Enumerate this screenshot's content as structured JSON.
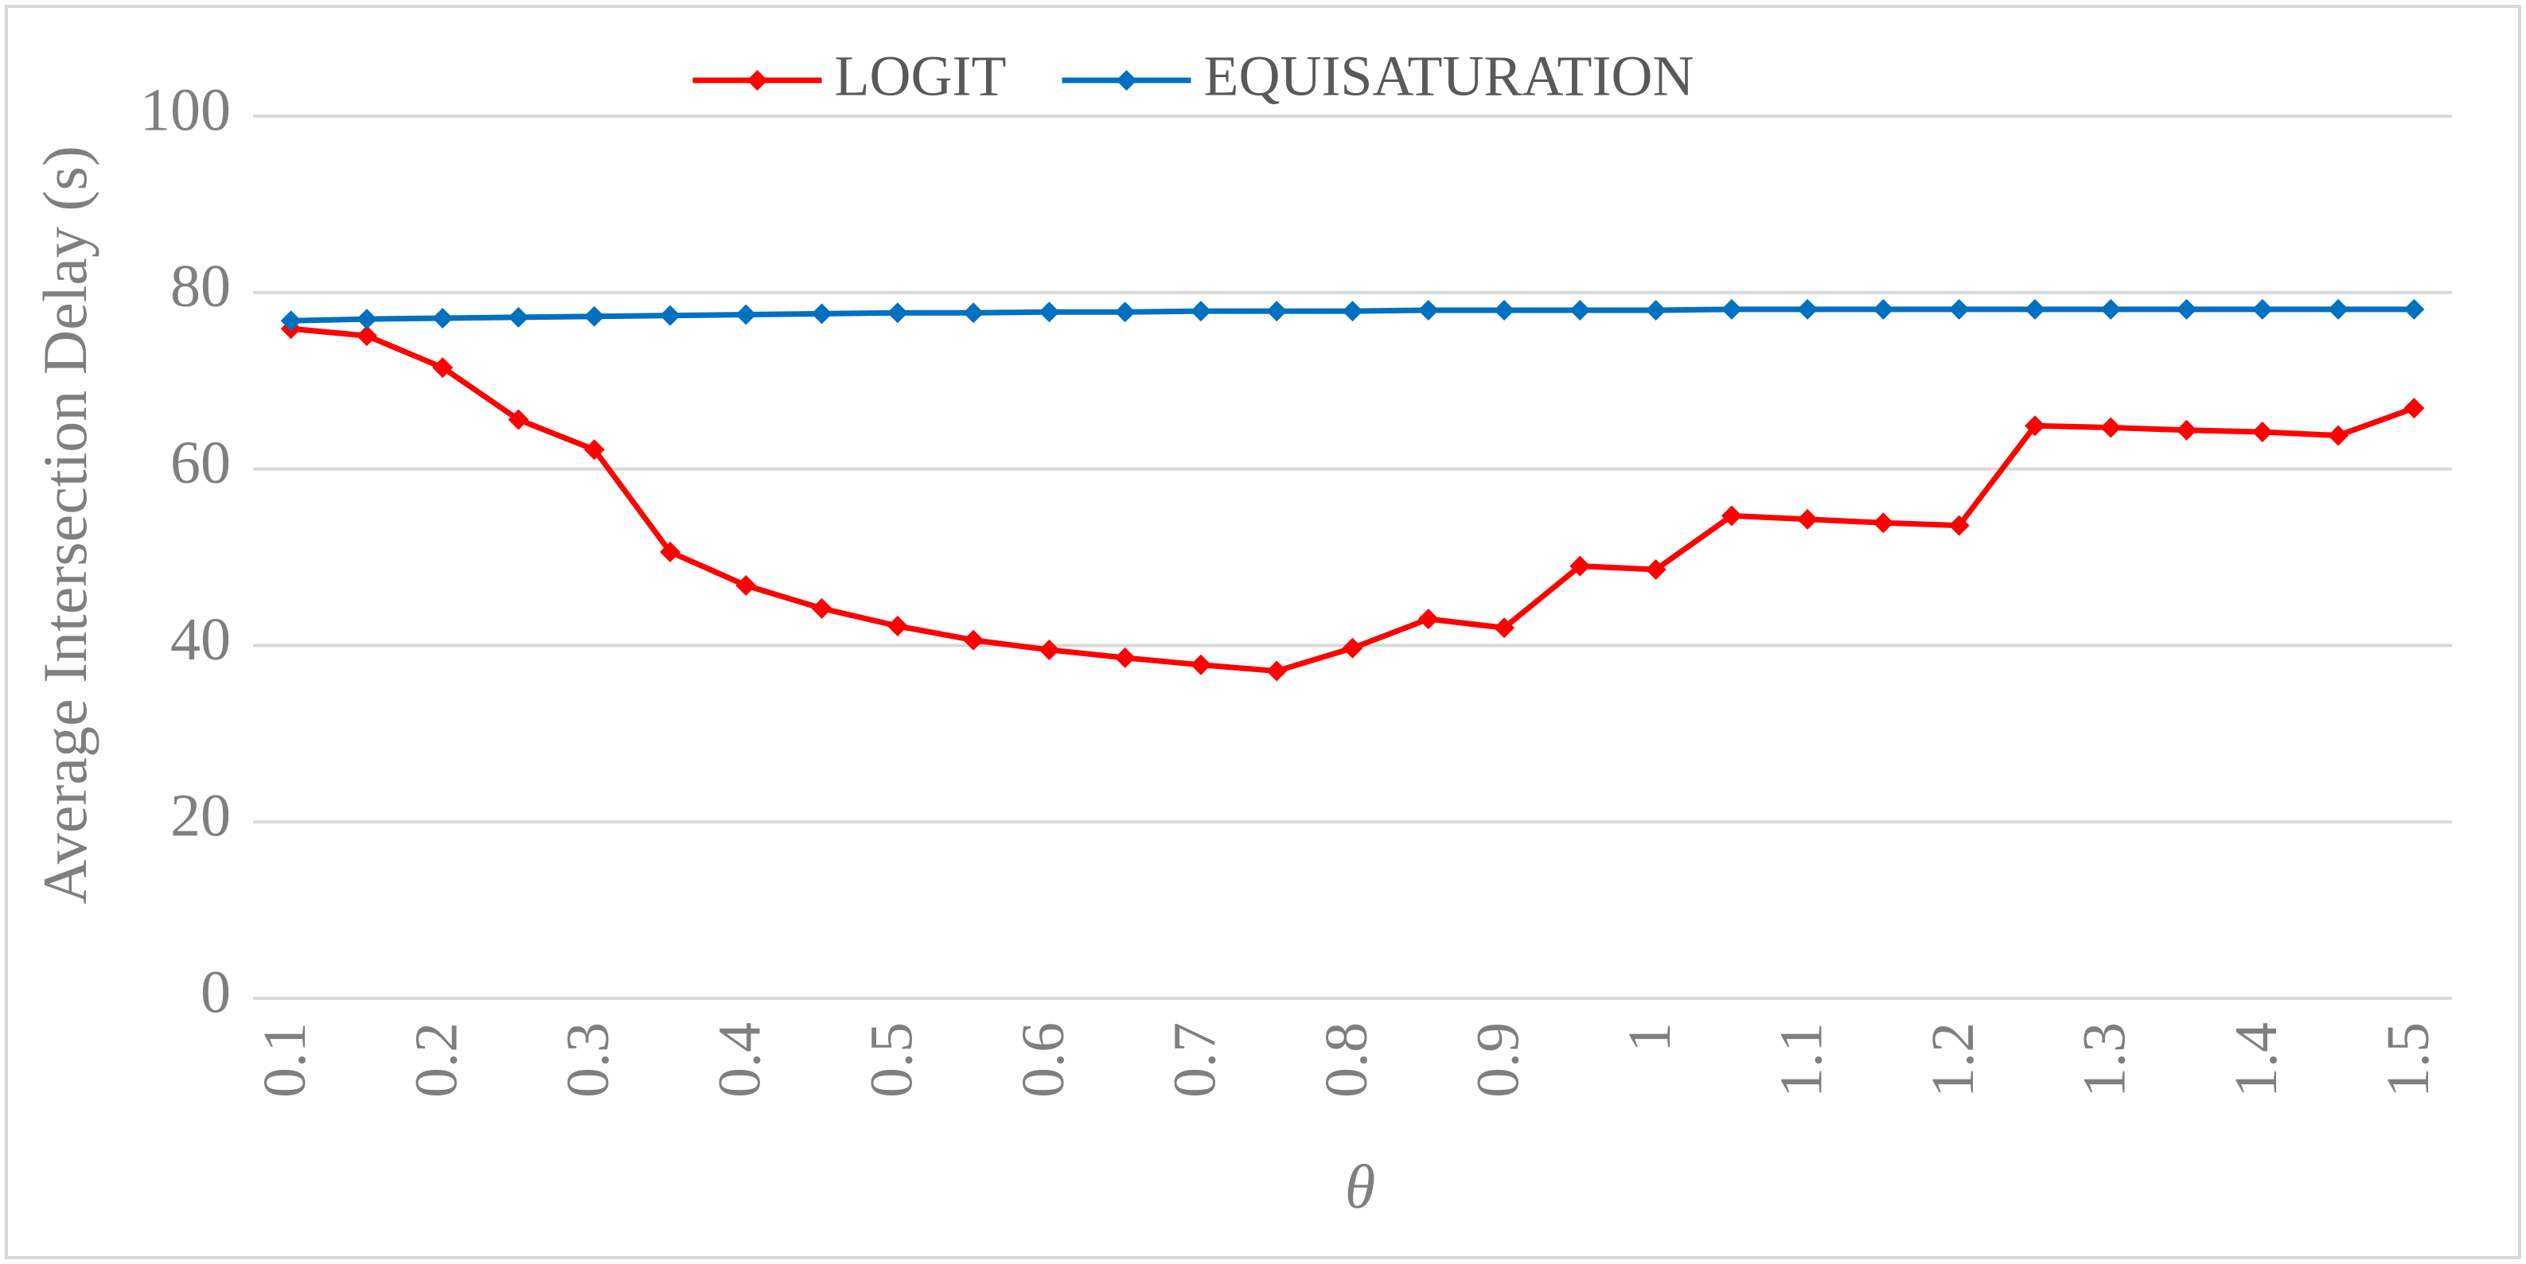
{
  "chart_data": {
    "type": "line",
    "y_label": "Average Intersection Delay (s)",
    "x_label": "θ",
    "categories": [
      "0.1",
      null,
      "0.2",
      null,
      "0.3",
      null,
      "0.4",
      null,
      "0.5",
      null,
      "0.6",
      null,
      "0.7",
      null,
      "0.8",
      null,
      "0.9",
      null,
      "1",
      null,
      "1.1",
      null,
      "1.2",
      null,
      "1.3",
      null,
      "1.4",
      null,
      "1.5"
    ],
    "series": [
      {
        "name": "LOGIT",
        "color": "#ff0000",
        "values": [
          75.9,
          75.1,
          71.5,
          65.6,
          62.2,
          50.6,
          46.8,
          44.2,
          42.2,
          40.6,
          39.5,
          38.6,
          37.8,
          37.1,
          39.7,
          43.0,
          42.0,
          49.0,
          48.6,
          54.7,
          54.3,
          53.9,
          53.6,
          64.9,
          64.7,
          64.4,
          64.2,
          63.8,
          66.9
        ]
      },
      {
        "name": "EQUISATURATION",
        "color": "#0070c0",
        "values": [
          76.8,
          77.0,
          77.1,
          77.2,
          77.3,
          77.4,
          77.5,
          77.6,
          77.7,
          77.7,
          77.8,
          77.8,
          77.9,
          77.9,
          77.9,
          78.0,
          78.0,
          78.0,
          78.0,
          78.1,
          78.1,
          78.1,
          78.1,
          78.1,
          78.1,
          78.1,
          78.1,
          78.1,
          78.1
        ]
      }
    ],
    "ylim": [
      0,
      100
    ],
    "yticks": [
      0,
      20,
      40,
      60,
      80,
      100
    ],
    "grid": true,
    "legend": "top"
  }
}
